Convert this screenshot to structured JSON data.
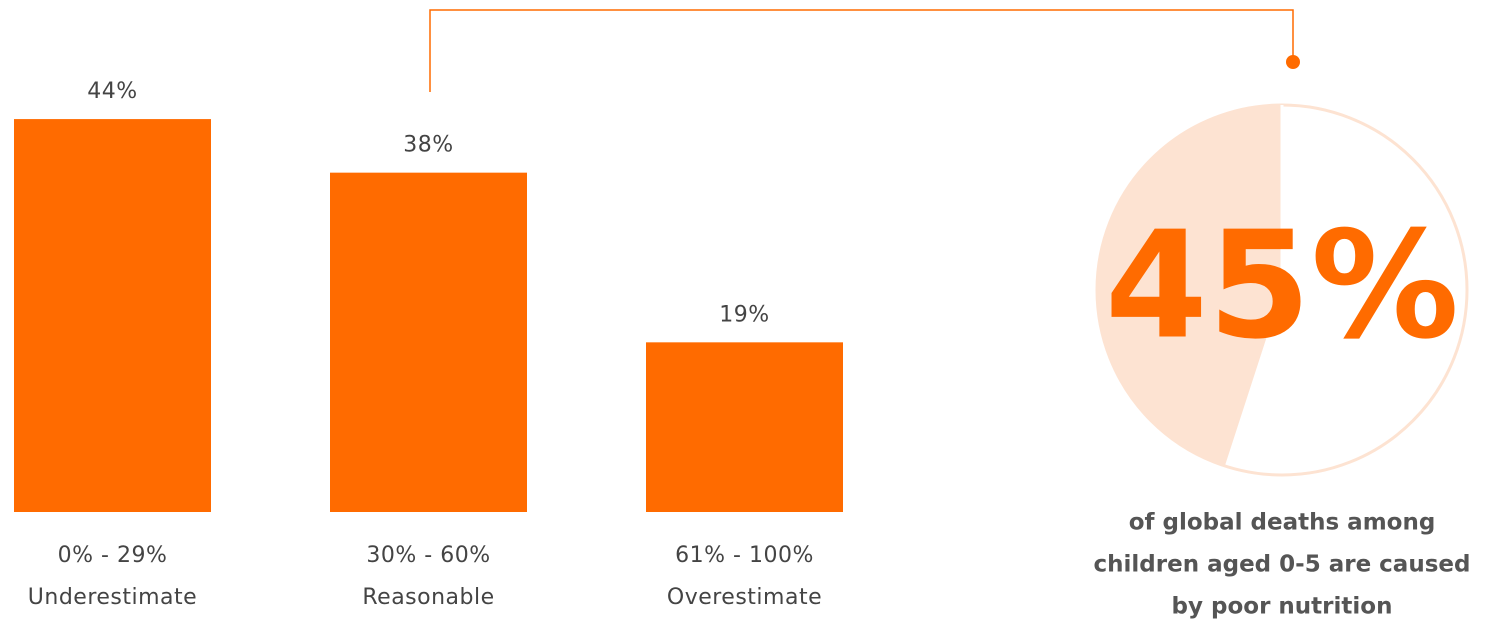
{
  "chart_data": [
    {
      "type": "bar",
      "categories": [
        "0% - 29%",
        "30% - 60%",
        "61% - 100%"
      ],
      "sublabels": [
        "Underestimate",
        "Reasonable",
        "Overestimate"
      ],
      "values": [
        44,
        38,
        19
      ],
      "value_labels": [
        "44%",
        "38%",
        "19%"
      ],
      "color": "#ff6b00"
    },
    {
      "type": "pie",
      "values": [
        45
      ],
      "value_labels": [
        "45%"
      ],
      "color": "#fde3d2",
      "caption": [
        "of global deaths among",
        "children aged 0-5 are caused",
        "by poor nutrition"
      ]
    }
  ]
}
